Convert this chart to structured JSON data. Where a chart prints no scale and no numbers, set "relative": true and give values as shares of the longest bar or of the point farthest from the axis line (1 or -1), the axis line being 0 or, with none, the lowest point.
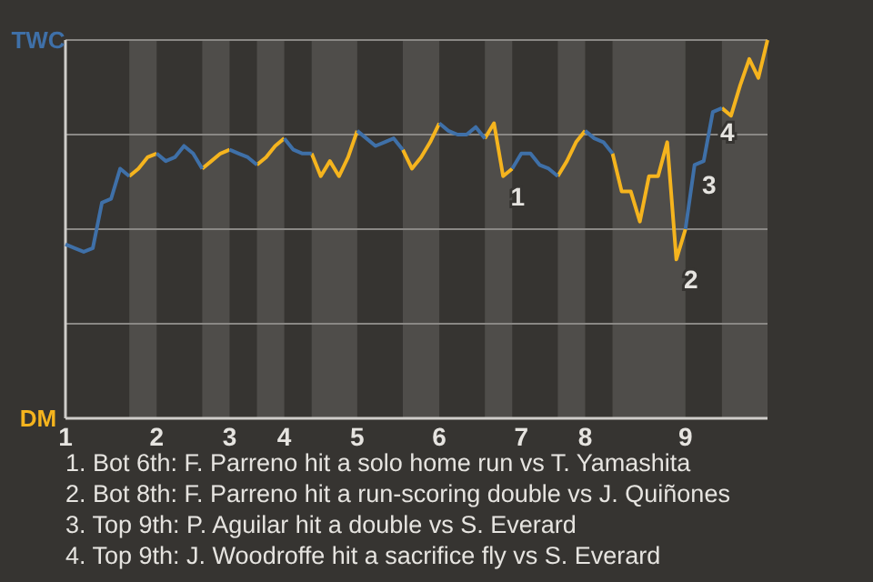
{
  "chart_data": {
    "type": "line",
    "categories": [
      "1",
      null,
      null,
      null,
      null,
      null,
      null,
      null,
      null,
      null,
      "2",
      null,
      null,
      null,
      null,
      null,
      null,
      null,
      "3",
      null,
      null,
      null,
      null,
      null,
      "4",
      null,
      null,
      null,
      null,
      null,
      null,
      null,
      "5",
      null,
      null,
      null,
      null,
      null,
      null,
      null,
      null,
      "6",
      null,
      null,
      null,
      null,
      null,
      null,
      null,
      null,
      "7",
      null,
      null,
      null,
      null,
      null,
      null,
      "8",
      null,
      null,
      null,
      null,
      null,
      null,
      null,
      null,
      null,
      null,
      "9",
      null,
      null,
      null,
      null,
      null,
      null,
      null,
      null,
      null
    ],
    "series": [
      {
        "name": "TWC",
        "color": "#3f70a8",
        "values": [
          0.46,
          0.45,
          0.44,
          0.45,
          0.57,
          0.58,
          0.66,
          0.64,
          null,
          null,
          0.7,
          0.68,
          0.69,
          0.72,
          0.7,
          0.66,
          null,
          null,
          0.71,
          0.7,
          0.69,
          0.67,
          null,
          null,
          0.74,
          0.71,
          0.7,
          0.7,
          null,
          null,
          null,
          null,
          0.76,
          0.74,
          0.72,
          0.73,
          0.74,
          0.71,
          null,
          null,
          null,
          0.78,
          0.76,
          0.75,
          0.75,
          0.77,
          0.74,
          null,
          null,
          0.66,
          0.7,
          0.7,
          0.67,
          0.66,
          0.64,
          null,
          null,
          0.76,
          0.74,
          0.73,
          0.7,
          null,
          null,
          null,
          null,
          null,
          null,
          null,
          0.5,
          0.67,
          0.68,
          0.81,
          0.82,
          null,
          null,
          null,
          null,
          null
        ]
      },
      {
        "name": "DM",
        "color": "#f5b41e",
        "values": [
          null,
          null,
          null,
          null,
          null,
          null,
          null,
          0.64,
          0.66,
          0.69,
          0.7,
          null,
          null,
          null,
          null,
          0.66,
          0.68,
          0.7,
          0.71,
          null,
          null,
          0.67,
          0.69,
          0.72,
          0.74,
          null,
          null,
          0.7,
          0.64,
          0.68,
          0.64,
          0.69,
          0.76,
          null,
          null,
          null,
          null,
          0.71,
          0.66,
          0.69,
          0.73,
          0.78,
          null,
          null,
          null,
          null,
          0.74,
          0.78,
          0.64,
          0.66,
          null,
          null,
          null,
          null,
          0.64,
          0.68,
          0.73,
          0.76,
          null,
          null,
          0.7,
          0.6,
          0.6,
          0.52,
          0.64,
          0.64,
          0.73,
          0.42,
          0.5,
          null,
          null,
          null,
          0.82,
          0.8,
          0.88,
          0.95,
          0.9,
          1.0
        ]
      }
    ],
    "relative": true,
    "grid": "y",
    "marker": "none",
    "annotations": [
      "1",
      "2",
      "3",
      "4",
      "1. Bot 6th: F. Parreno hit a solo home run vs T. Yamashita",
      "2. Bot 8th: F. Parreno hit a run-scoring double vs J. Quiñones",
      "3. Top 9th: P. Aguilar hit a double vs S. Everard",
      "4. Top 9th: J. Woodroffe hit a sacrifice fly vs S. Everard"
    ]
  }
}
